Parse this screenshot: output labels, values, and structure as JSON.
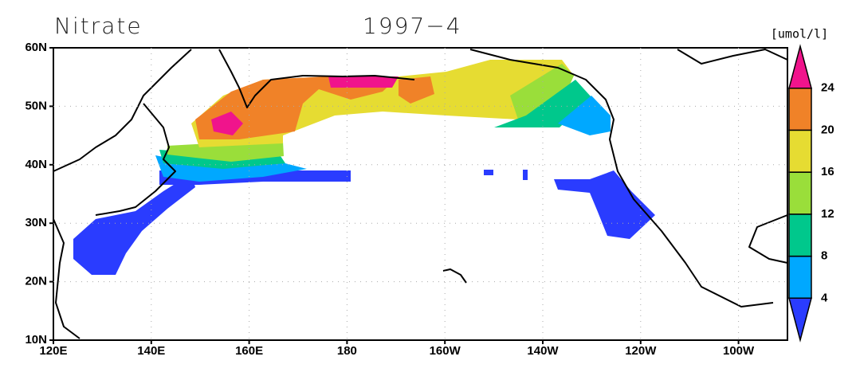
{
  "title": "Nitrate",
  "date": "1997−4",
  "map": {
    "lat_labels": [
      "60N",
      "50N",
      "40N",
      "30N",
      "20N",
      "10N"
    ],
    "lon_labels": [
      "120E",
      "140E",
      "160E",
      "180",
      "160W",
      "140W",
      "120W",
      "100W"
    ]
  },
  "colorbar": {
    "unit": "[umol/l]",
    "levels": [
      4,
      8,
      12,
      16,
      20,
      24
    ],
    "colors": [
      "#2a3cff",
      "#00a8ff",
      "#00c88c",
      "#9ade3a",
      "#e6dc32",
      "#f08228",
      "#f0148c"
    ]
  }
}
